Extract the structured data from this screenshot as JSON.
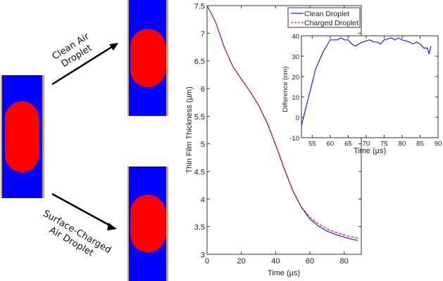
{
  "diagram": {
    "top_label_line1": "Clean Air",
    "top_label_line2": "Droplet",
    "bottom_label_line1": "Surface-Charged",
    "bottom_label_line2": "Air Droplet",
    "colors": {
      "liquid": "#0000ff",
      "droplet": "#ff0000",
      "wall": "#c8a27a",
      "arrow": "#000000"
    }
  },
  "chart_data": [
    {
      "type": "line",
      "title": "",
      "xlabel": "Time (µs)",
      "ylabel": "Thin Film Thickness (µm)",
      "xlim": [
        0,
        90
      ],
      "ylim": [
        3,
        7.5
      ],
      "xticks": [
        "0",
        "20",
        "40",
        "60",
        "80"
      ],
      "xtick_values": [
        0,
        20,
        40,
        60,
        80
      ],
      "yticks": [
        "3",
        "3.5",
        "4",
        "4.5",
        "5",
        "5.5",
        "6",
        "6.5",
        "7",
        "7.5"
      ],
      "ytick_values": [
        3,
        3.5,
        4,
        4.5,
        5,
        5.5,
        6,
        6.5,
        7,
        7.5
      ],
      "legend_position": "top-right",
      "series": [
        {
          "name": "Clean Droplet",
          "color": "#2020e0",
          "style": "solid",
          "x": [
            0,
            5,
            10,
            15,
            20,
            25,
            30,
            35,
            40,
            45,
            50,
            55,
            60,
            65,
            70,
            75,
            80,
            85,
            88
          ],
          "y": [
            7.5,
            7.2,
            6.75,
            6.4,
            6.17,
            5.95,
            5.7,
            5.38,
            4.98,
            4.55,
            4.15,
            3.85,
            3.64,
            3.51,
            3.42,
            3.36,
            3.31,
            3.27,
            3.25
          ]
        },
        {
          "name": "Charged Droplet",
          "color": "#e02020",
          "style": "dashed",
          "x": [
            0,
            5,
            10,
            15,
            20,
            25,
            30,
            35,
            40,
            45,
            50,
            55,
            60,
            65,
            70,
            75,
            80,
            85,
            88
          ],
          "y": [
            7.5,
            7.2,
            6.75,
            6.4,
            6.17,
            5.95,
            5.7,
            5.39,
            4.99,
            4.56,
            4.16,
            3.86,
            3.67,
            3.55,
            3.46,
            3.4,
            3.35,
            3.31,
            3.29
          ]
        }
      ]
    },
    {
      "type": "line",
      "title": "",
      "xlabel": "Time (µs)",
      "ylabel": "Difference (nm)",
      "xlim": [
        52,
        90
      ],
      "ylim": [
        -10,
        40
      ],
      "xticks": [
        "55",
        "60",
        "65",
        "70",
        "75",
        "80",
        "85",
        "90"
      ],
      "xtick_values": [
        55,
        60,
        65,
        70,
        75,
        80,
        85,
        90
      ],
      "yticks": [
        "-10",
        "0",
        "10",
        "20",
        "30",
        "40"
      ],
      "ytick_values": [
        -10,
        0,
        10,
        20,
        30,
        40
      ],
      "series": [
        {
          "name": "Difference",
          "color": "#2020e0",
          "style": "solid",
          "x": [
            52,
            53,
            54,
            55,
            56,
            57,
            58,
            59,
            60,
            62,
            63,
            64,
            65,
            66,
            67,
            68,
            69,
            71,
            72,
            73,
            74,
            75,
            77,
            78,
            79,
            80,
            82,
            83,
            84,
            85,
            86,
            87,
            87.5,
            88
          ],
          "y": [
            -4,
            3,
            10,
            17,
            24,
            28,
            32,
            35,
            38,
            38,
            39,
            38,
            38,
            36,
            35,
            36,
            37,
            38,
            37,
            37,
            36,
            38,
            39,
            38,
            39,
            38,
            37,
            36,
            37,
            36,
            34,
            34,
            31,
            35
          ]
        }
      ]
    }
  ]
}
